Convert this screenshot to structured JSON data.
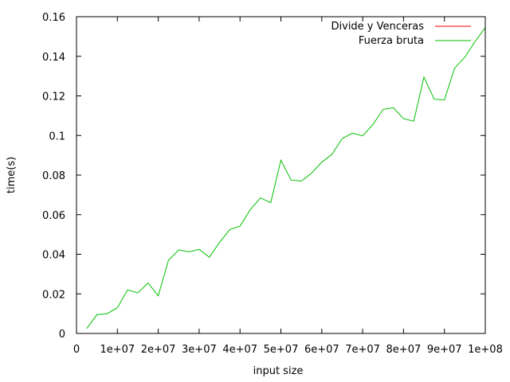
{
  "chart_data": {
    "type": "line",
    "xlabel": "input size",
    "ylabel": "time(s)",
    "xlim": [
      0,
      100000000
    ],
    "ylim": [
      0,
      0.16
    ],
    "x_ticks": [
      {
        "value": 0,
        "label": "0"
      },
      {
        "value": 10000000,
        "label": "1e+07"
      },
      {
        "value": 20000000,
        "label": "2e+07"
      },
      {
        "value": 30000000,
        "label": "3e+07"
      },
      {
        "value": 40000000,
        "label": "4e+07"
      },
      {
        "value": 50000000,
        "label": "5e+07"
      },
      {
        "value": 60000000,
        "label": "6e+07"
      },
      {
        "value": 70000000,
        "label": "7e+07"
      },
      {
        "value": 80000000,
        "label": "8e+07"
      },
      {
        "value": 90000000,
        "label": "9e+07"
      },
      {
        "value": 100000000,
        "label": "1e+08"
      }
    ],
    "y_ticks": [
      {
        "value": 0,
        "label": "0"
      },
      {
        "value": 0.02,
        "label": "0.02"
      },
      {
        "value": 0.04,
        "label": "0.04"
      },
      {
        "value": 0.06,
        "label": "0.06"
      },
      {
        "value": 0.08,
        "label": "0.08"
      },
      {
        "value": 0.1,
        "label": "0.1"
      },
      {
        "value": 0.12,
        "label": "0.12"
      },
      {
        "value": 0.14,
        "label": "0.14"
      },
      {
        "value": 0.16,
        "label": "0.16"
      }
    ],
    "grid": false,
    "legend_position": "top-right",
    "series": [
      {
        "name": "Divide y Venceras",
        "color": "#ff0000",
        "x": [],
        "y": []
      },
      {
        "name": "Fuerza bruta",
        "color": "#00c000",
        "x": [
          2500000,
          5000000,
          7500000,
          10000000,
          12500000,
          15000000,
          17500000,
          20000000,
          22500000,
          25000000,
          27500000,
          30000000,
          32500000,
          35000000,
          37500000,
          40000000,
          42500000,
          45000000,
          47500000,
          50000000,
          52500000,
          55000000,
          57500000,
          60000000,
          62500000,
          65000000,
          67500000,
          70000000,
          72500000,
          75000000,
          77500000,
          80000000,
          82500000,
          85000000,
          87500000,
          90000000,
          92500000,
          95000000,
          97500000,
          100000000
        ],
        "y": [
          0.0025,
          0.0095,
          0.01,
          0.013,
          0.022,
          0.0205,
          0.0255,
          0.019,
          0.037,
          0.0422,
          0.0412,
          0.0425,
          0.0385,
          0.046,
          0.0525,
          0.0542,
          0.0625,
          0.0685,
          0.066,
          0.0875,
          0.0775,
          0.077,
          0.081,
          0.0865,
          0.0905,
          0.0985,
          0.1012,
          0.0998,
          0.1055,
          0.1132,
          0.114,
          0.1085,
          0.1072,
          0.1295,
          0.1183,
          0.118,
          0.134,
          0.1395,
          0.1475,
          0.1545
        ]
      }
    ]
  }
}
